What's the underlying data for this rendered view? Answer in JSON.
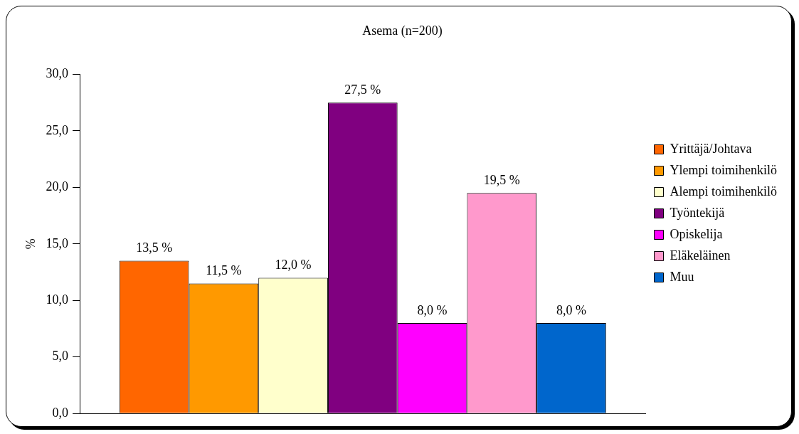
{
  "chart_data": {
    "type": "bar",
    "title": "Asema (n=200)",
    "ylabel": "%",
    "categories": [
      null
    ],
    "series": [
      {
        "name": "Yrittäjä/Johtava",
        "color": "#ff6600",
        "values": [
          13.5
        ],
        "value_labels": [
          "13,5 %"
        ]
      },
      {
        "name": "Ylempi toimihenkilö",
        "color": "#ff9900",
        "values": [
          11.5
        ],
        "value_labels": [
          "11,5 %"
        ]
      },
      {
        "name": "Alempi toimihenkilö",
        "color": "#ffffcc",
        "values": [
          12.0
        ],
        "value_labels": [
          "12,0 %"
        ]
      },
      {
        "name": "Työntekijä",
        "color": "#800080",
        "values": [
          27.5
        ],
        "value_labels": [
          "27,5 %"
        ]
      },
      {
        "name": "Opiskelija",
        "color": "#ff00ff",
        "values": [
          8.0
        ],
        "value_labels": [
          "8,0 %"
        ]
      },
      {
        "name": "Eläkeläinen",
        "color": "#ff99cc",
        "values": [
          19.5
        ],
        "value_labels": [
          "19,5 %"
        ]
      },
      {
        "name": "Muu",
        "color": "#0066cc",
        "values": [
          8.0
        ],
        "value_labels": [
          "8,0 %"
        ]
      }
    ],
    "ylim": [
      0,
      30
    ],
    "yticks": [
      {
        "value": 0,
        "label": "0,0"
      },
      {
        "value": 5,
        "label": "5,0"
      },
      {
        "value": 10,
        "label": "10,0"
      },
      {
        "value": 15,
        "label": "15,0"
      },
      {
        "value": 20,
        "label": "20,0"
      },
      {
        "value": 25,
        "label": "25,0"
      },
      {
        "value": 30,
        "label": "30,0"
      }
    ],
    "grid": false,
    "legend": "right",
    "tick_labels": "y"
  }
}
